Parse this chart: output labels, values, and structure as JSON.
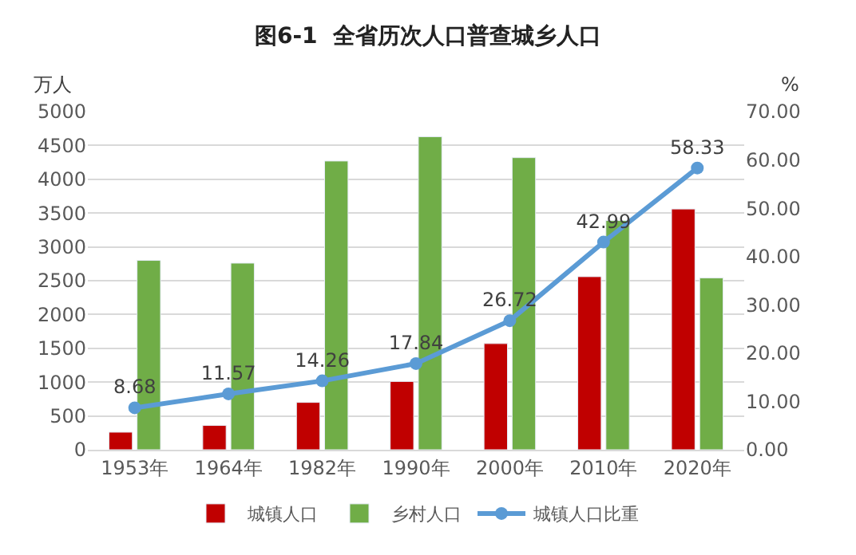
{
  "chart_data": {
    "type": "bar",
    "title": "图6-1  全省历次人口普查城乡人口",
    "ylabel": "万人",
    "y2label": "%",
    "categories": [
      "1953年",
      "1964年",
      "1982年",
      "1990年",
      "2000年",
      "2010年",
      "2020年"
    ],
    "series": [
      {
        "name": "城镇人口",
        "color": "#c00000",
        "values": [
          260,
          360,
          700,
          1010,
          1570,
          2560,
          3560
        ]
      },
      {
        "name": "乡村人口",
        "color": "#70ad47",
        "values": [
          2800,
          2760,
          4270,
          4630,
          4320,
          3390,
          2540
        ]
      },
      {
        "name": "城镇人口比重",
        "type": "line",
        "axis": "y2",
        "color": "#5b9bd5",
        "marker": "circle",
        "values": [
          8.68,
          11.57,
          14.26,
          17.84,
          26.72,
          42.99,
          58.33
        ],
        "data_labels": true
      }
    ],
    "ylim": [
      0,
      5000
    ],
    "yticks": [
      0,
      500,
      1000,
      1500,
      2000,
      2500,
      3000,
      3500,
      4000,
      4500,
      5000
    ],
    "y2lim": [
      0,
      70
    ],
    "y2ticks": [
      {
        "value": 0,
        "label": "0.00"
      },
      {
        "value": 10,
        "label": "10.00"
      },
      {
        "value": 20,
        "label": "20.00"
      },
      {
        "value": 30,
        "label": "30.00"
      },
      {
        "value": 40,
        "label": "40.00"
      },
      {
        "value": 50,
        "label": "50.00"
      },
      {
        "value": 60,
        "label": "60.00"
      },
      {
        "value": 70,
        "label": "70.00"
      }
    ],
    "grid": "y",
    "legend": "bottom"
  }
}
